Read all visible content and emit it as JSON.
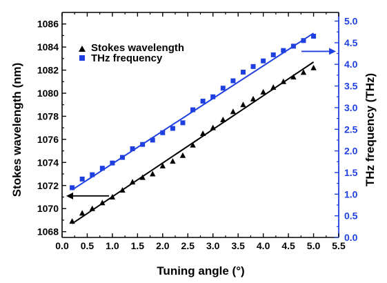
{
  "chart_data": {
    "type": "scatter",
    "xlabel": "Tuning angle (°)",
    "ylabel_left": "Stokes wavelength (nm)",
    "ylabel_right": "THz frequency (THz)",
    "xlim": [
      0.0,
      5.5
    ],
    "ylim_left": [
      1067.5,
      1087
    ],
    "ylim_right": [
      0.0,
      5.2
    ],
    "x_ticks": [
      "0.0",
      "0.5",
      "1.0",
      "1.5",
      "2.0",
      "2.5",
      "3.0",
      "3.5",
      "4.0",
      "4.5",
      "5.0",
      "5.5"
    ],
    "y_ticks_left": [
      "1068",
      "1070",
      "1072",
      "1074",
      "1076",
      "1078",
      "1080",
      "1082",
      "1084",
      "1086"
    ],
    "y_ticks_right": [
      "0.0",
      "0.5",
      "1.0",
      "1.5",
      "2.0",
      "2.5",
      "3.0",
      "3.5",
      "4.0",
      "4.5",
      "5.0"
    ],
    "legend_position": "top-left",
    "grid": false,
    "series": [
      {
        "name": "Stokes wavelength",
        "axis": "left",
        "marker": "triangle",
        "color": "#000000",
        "x": [
          0.2,
          0.4,
          0.6,
          0.8,
          1.0,
          1.2,
          1.4,
          1.6,
          1.8,
          2.0,
          2.2,
          2.4,
          2.6,
          2.8,
          3.0,
          3.2,
          3.4,
          3.6,
          3.8,
          4.0,
          4.2,
          4.4,
          4.6,
          4.8,
          5.0
        ],
        "y": [
          1068.9,
          1069.6,
          1070.0,
          1070.5,
          1071.0,
          1071.6,
          1072.3,
          1072.7,
          1073.0,
          1073.7,
          1074.1,
          1074.6,
          1075.5,
          1076.5,
          1077.0,
          1077.7,
          1078.4,
          1079.0,
          1079.5,
          1080.1,
          1080.5,
          1081.0,
          1081.4,
          1081.8,
          1082.2
        ],
        "fit": {
          "x": [
            0.2,
            5.0
          ],
          "y": [
            1068.7,
            1082.7
          ]
        }
      },
      {
        "name": "THz frequency",
        "axis": "right",
        "marker": "square",
        "color": "#1f3fe0",
        "x": [
          0.2,
          0.4,
          0.6,
          0.8,
          1.0,
          1.2,
          1.4,
          1.6,
          1.8,
          2.0,
          2.2,
          2.4,
          2.6,
          2.8,
          3.0,
          3.2,
          3.4,
          3.6,
          3.8,
          4.0,
          4.2,
          4.4,
          4.6,
          4.8,
          5.0
        ],
        "y": [
          1.15,
          1.35,
          1.45,
          1.6,
          1.72,
          1.85,
          2.05,
          2.15,
          2.25,
          2.42,
          2.52,
          2.65,
          2.95,
          3.15,
          3.25,
          3.45,
          3.62,
          3.82,
          3.95,
          4.08,
          4.22,
          4.32,
          4.42,
          4.55,
          4.65
        ],
        "fit": {
          "x": [
            0.2,
            5.0
          ],
          "y": [
            1.1,
            4.72
          ]
        }
      }
    ],
    "annotations": [
      {
        "type": "arrow",
        "direction": "left",
        "series": "Stokes wavelength"
      },
      {
        "type": "arrow",
        "direction": "right",
        "series": "THz frequency"
      }
    ]
  }
}
